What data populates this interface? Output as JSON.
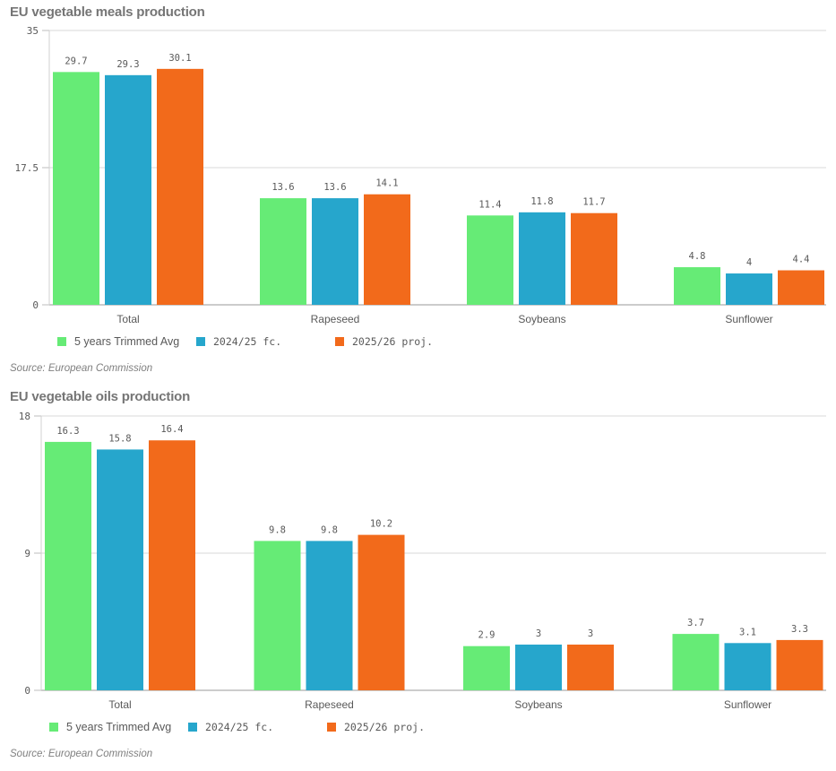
{
  "chart_data": [
    {
      "type": "bar",
      "title": "EU vegetable meals production",
      "xlabel": "",
      "ylabel": "",
      "categories": [
        "Total",
        "Rapeseed",
        "Soybeans",
        "Sunflower"
      ],
      "series": [
        {
          "name": "5 years Trimmed Avg",
          "color": "#66EB76",
          "values": [
            29.7,
            13.6,
            11.4,
            4.8
          ]
        },
        {
          "name": "2024/25 fc.",
          "color": "#26A6CC",
          "values": [
            29.3,
            13.6,
            11.8,
            4
          ]
        },
        {
          "name": "2025/26 proj.",
          "color": "#F26A1B",
          "values": [
            30.1,
            14.1,
            11.7,
            4.4
          ]
        }
      ],
      "yticks": [
        "0",
        "17.5",
        "35"
      ],
      "ylim": [
        0,
        35
      ],
      "grid": true,
      "legend": "bottom-left",
      "source": "Source: European Commission"
    },
    {
      "type": "bar",
      "title": "EU vegetable oils production",
      "xlabel": "",
      "ylabel": "",
      "categories": [
        "Total",
        "Rapeseed",
        "Soybeans",
        "Sunflower"
      ],
      "series": [
        {
          "name": "5 years Trimmed Avg",
          "color": "#66EB76",
          "values": [
            16.3,
            9.8,
            2.9,
            3.7
          ]
        },
        {
          "name": "2024/25 fc.",
          "color": "#26A6CC",
          "values": [
            15.8,
            9.8,
            3,
            3.1
          ]
        },
        {
          "name": "2025/26 proj.",
          "color": "#F26A1B",
          "values": [
            16.4,
            10.2,
            3,
            3.3
          ]
        }
      ],
      "yticks": [
        "0",
        "9",
        "18"
      ],
      "ylim": [
        0,
        18
      ],
      "grid": true,
      "legend": "bottom-left",
      "source": "Source: European Commission"
    }
  ]
}
